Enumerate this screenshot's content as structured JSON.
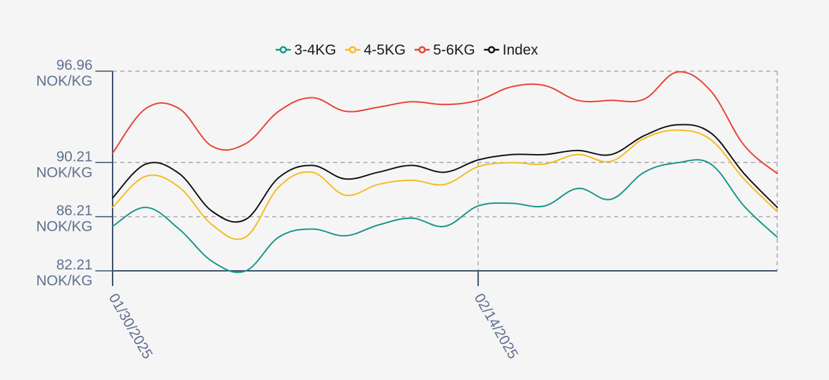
{
  "chart_data": {
    "type": "line",
    "title": "",
    "xlabel": "",
    "ylabel": "",
    "ylim": [
      82.21,
      96.96
    ],
    "y_ticks": [
      {
        "value": 96.96,
        "label": "96.96",
        "unit": "NOK/KG"
      },
      {
        "value": 90.21,
        "label": "90.21",
        "unit": "NOK/KG"
      },
      {
        "value": 86.21,
        "label": "86.21",
        "unit": "NOK/KG"
      },
      {
        "value": 82.21,
        "label": "82.21",
        "unit": "NOK/KG"
      }
    ],
    "x_ticks": [
      {
        "index": 0,
        "label": "01/30/2025"
      },
      {
        "index": 11,
        "label": "02/14/2025"
      }
    ],
    "x": [
      "2025-01-30",
      "2025-01-31",
      "2025-02-03",
      "2025-02-04",
      "2025-02-05",
      "2025-02-06",
      "2025-02-07",
      "2025-02-10",
      "2025-02-11",
      "2025-02-12",
      "2025-02-13",
      "2025-02-14",
      "2025-02-17",
      "2025-02-18",
      "2025-02-19",
      "2025-02-20",
      "2025-02-21",
      "2025-02-24",
      "2025-02-25",
      "2025-02-26",
      "2025-02-27"
    ],
    "grid": true,
    "legend_position": "top-center",
    "series": [
      {
        "name": "3-4KG",
        "color": "#16968a",
        "values": [
          85.5,
          86.9,
          85.3,
          82.9,
          82.2,
          84.7,
          85.3,
          84.8,
          85.6,
          86.1,
          85.5,
          87.0,
          87.2,
          87.0,
          88.3,
          87.5,
          89.5,
          90.2,
          90.1,
          87.0,
          84.7
        ]
      },
      {
        "name": "4-5KG",
        "color": "#f5bc1c",
        "values": [
          86.9,
          89.2,
          88.4,
          85.6,
          84.7,
          88.4,
          89.5,
          87.8,
          88.6,
          88.9,
          88.6,
          89.9,
          90.2,
          90.1,
          90.8,
          90.3,
          92.0,
          92.6,
          91.9,
          89.0,
          86.6
        ]
      },
      {
        "name": "5-6KG",
        "color": "#eb4135",
        "values": [
          90.9,
          94.2,
          94.2,
          91.4,
          91.6,
          94.0,
          95.0,
          94.0,
          94.3,
          94.7,
          94.5,
          94.8,
          95.8,
          95.9,
          94.8,
          94.8,
          94.9,
          96.9,
          95.5,
          91.5,
          89.4
        ]
      },
      {
        "name": "Index",
        "color": "#111111",
        "values": [
          87.6,
          90.1,
          89.4,
          86.6,
          86.0,
          89.1,
          90.0,
          89.0,
          89.5,
          90.0,
          89.5,
          90.4,
          90.8,
          90.8,
          91.1,
          90.8,
          92.2,
          93.0,
          92.4,
          89.4,
          86.9
        ]
      }
    ]
  }
}
